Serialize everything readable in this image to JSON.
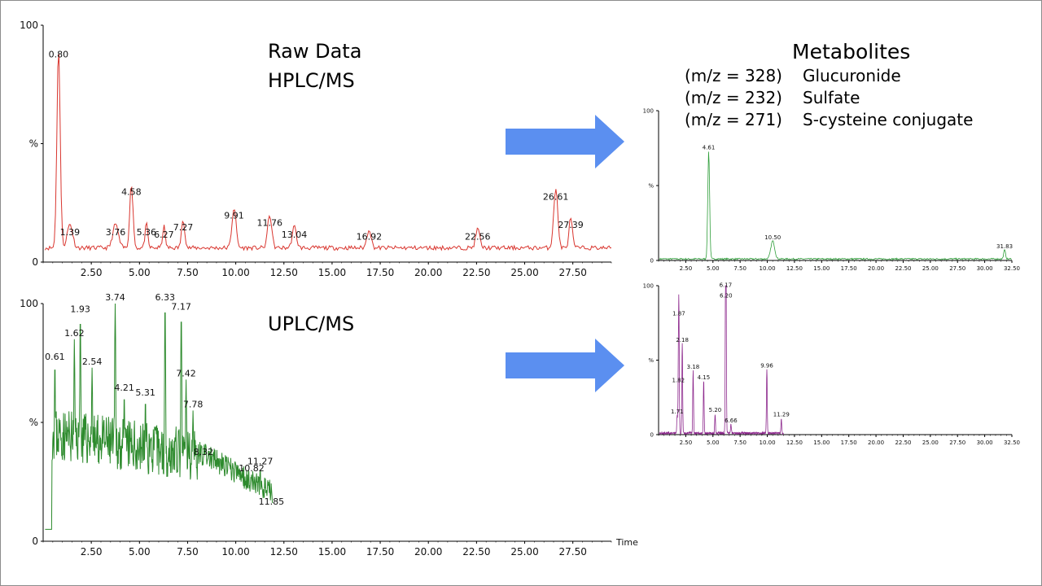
{
  "labels": {
    "raw_title": "Raw Data",
    "raw_subtitle": "HPLC/MS",
    "uplc_title": "UPLC/MS",
    "metabolites_title": "Metabolites",
    "metabolites": [
      {
        "mz": "(m/z = 328)",
        "name": "Glucuronide"
      },
      {
        "mz": "(m/z = 232)",
        "name": "Sulfate"
      },
      {
        "mz": "(m/z = 271)",
        "name": "S-cysteine conjugate"
      }
    ]
  },
  "colors": {
    "hplc": "#d9362f",
    "uplc": "#2e8b2e",
    "metab_top": "#2f9e3a",
    "metab_bottom": "#8e2a8e",
    "arrow": "#5b8ff0"
  },
  "chart_data": [
    {
      "id": "hplc",
      "type": "line",
      "title": "Raw Data HPLC/MS",
      "xlim": [
        0,
        29.5
      ],
      "ylim": [
        0,
        100
      ],
      "y_ticks": [
        "0",
        "%",
        "100"
      ],
      "x_ticks": [
        "2.50",
        "5.00",
        "7.50",
        "10.00",
        "12.50",
        "15.00",
        "17.50",
        "20.00",
        "22.50",
        "25.00",
        "27.50"
      ],
      "x_label": "",
      "baseline": 6,
      "peaks": [
        {
          "x": 0.8,
          "y": 85,
          "w": 0.12,
          "label": "0.80"
        },
        {
          "x": 1.39,
          "y": 10,
          "w": 0.2,
          "label": "1.39"
        },
        {
          "x": 3.76,
          "y": 10,
          "w": 0.2,
          "label": "3.76"
        },
        {
          "x": 4.58,
          "y": 27,
          "w": 0.12,
          "label": "4.58"
        },
        {
          "x": 5.36,
          "y": 10,
          "w": 0.1,
          "label": "5.36"
        },
        {
          "x": 6.27,
          "y": 9,
          "w": 0.1,
          "label": "6.27"
        },
        {
          "x": 7.27,
          "y": 12,
          "w": 0.12,
          "label": "7.27"
        },
        {
          "x": 9.91,
          "y": 17,
          "w": 0.15,
          "label": "9.91"
        },
        {
          "x": 11.76,
          "y": 14,
          "w": 0.15,
          "label": "11.76"
        },
        {
          "x": 13.04,
          "y": 9,
          "w": 0.15,
          "label": "13.04"
        },
        {
          "x": 16.92,
          "y": 8,
          "w": 0.15,
          "label": "16.92"
        },
        {
          "x": 22.56,
          "y": 8,
          "w": 0.15,
          "label": "22.56"
        },
        {
          "x": 26.61,
          "y": 25,
          "w": 0.15,
          "label": "26.61"
        },
        {
          "x": 27.39,
          "y": 13,
          "w": 0.12,
          "label": "27.39"
        }
      ]
    },
    {
      "id": "uplc",
      "type": "line",
      "title": "UPLC/MS",
      "xlim": [
        0,
        29.5
      ],
      "ylim": [
        0,
        100
      ],
      "y_ticks": [
        "0",
        "%",
        "100"
      ],
      "x_ticks": [
        "2.50",
        "5.00",
        "7.50",
        "10.00",
        "12.50",
        "15.00",
        "17.50",
        "20.00",
        "22.50",
        "25.00",
        "27.50"
      ],
      "x_label": "Time",
      "x_end": 11.9,
      "peaks": [
        {
          "x": 0.61,
          "y": 75,
          "w": 0.05,
          "label": "0.61"
        },
        {
          "x": 1.62,
          "y": 85,
          "w": 0.05,
          "label": "1.62"
        },
        {
          "x": 1.93,
          "y": 95,
          "w": 0.05,
          "label": "1.93"
        },
        {
          "x": 2.54,
          "y": 73,
          "w": 0.05,
          "label": "2.54"
        },
        {
          "x": 3.74,
          "y": 100,
          "w": 0.05,
          "label": "3.74"
        },
        {
          "x": 4.21,
          "y": 62,
          "w": 0.05,
          "label": "4.21"
        },
        {
          "x": 5.31,
          "y": 60,
          "w": 0.05,
          "label": "5.31"
        },
        {
          "x": 6.33,
          "y": 100,
          "w": 0.05,
          "label": "6.33"
        },
        {
          "x": 7.17,
          "y": 96,
          "w": 0.05,
          "label": "7.17"
        },
        {
          "x": 7.42,
          "y": 68,
          "w": 0.05,
          "label": "7.42"
        },
        {
          "x": 7.78,
          "y": 55,
          "w": 0.05,
          "label": "7.78"
        },
        {
          "x": 8.32,
          "y": 35,
          "w": 0.05,
          "label": "8.32"
        },
        {
          "x": 10.82,
          "y": 28,
          "w": 0.05,
          "label": "10.82"
        },
        {
          "x": 11.27,
          "y": 31,
          "w": 0.05,
          "label": "11.27"
        },
        {
          "x": 11.85,
          "y": 14,
          "w": 0.05,
          "label": "11.85"
        }
      ]
    },
    {
      "id": "metab-top",
      "type": "line",
      "title": "",
      "xlim": [
        0,
        32.5
      ],
      "ylim": [
        0,
        100
      ],
      "y_ticks": [
        "0",
        "%",
        "100"
      ],
      "x_ticks": [
        "2.50",
        "5.00",
        "7.50",
        "10.00",
        "12.50",
        "15.00",
        "17.50",
        "20.00",
        "22.50",
        "25.00",
        "27.50",
        "30.00",
        "32.50"
      ],
      "x_label": "",
      "baseline": 1,
      "peaks": [
        {
          "x": 4.61,
          "y": 72,
          "w": 0.12,
          "label": "4.61"
        },
        {
          "x": 10.5,
          "y": 12,
          "w": 0.25,
          "label": "10.50"
        },
        {
          "x": 31.83,
          "y": 6,
          "w": 0.12,
          "label": "31.83"
        }
      ]
    },
    {
      "id": "metab-bottom",
      "type": "line",
      "title": "",
      "xlim": [
        0,
        32.5
      ],
      "ylim": [
        0,
        100
      ],
      "y_ticks": [
        "0",
        "%",
        "100"
      ],
      "x_ticks": [
        "2.50",
        "5.00",
        "7.50",
        "10.00",
        "12.50",
        "15.00",
        "17.50",
        "20.00",
        "22.50",
        "25.00",
        "27.50",
        "30.00",
        "32.50"
      ],
      "x_label": "",
      "baseline": 1,
      "x_end": 11.5,
      "peaks": [
        {
          "x": 1.71,
          "y": 12,
          "w": 0.05,
          "label": "1.71"
        },
        {
          "x": 1.82,
          "y": 33,
          "w": 0.05,
          "label": "1.82"
        },
        {
          "x": 1.87,
          "y": 78,
          "w": 0.05,
          "label": "1.87"
        },
        {
          "x": 2.18,
          "y": 60,
          "w": 0.05,
          "label": "2.18"
        },
        {
          "x": 3.18,
          "y": 42,
          "w": 0.05,
          "label": "3.18"
        },
        {
          "x": 4.15,
          "y": 35,
          "w": 0.05,
          "label": "4.15"
        },
        {
          "x": 5.2,
          "y": 13,
          "w": 0.05,
          "label": "5.20"
        },
        {
          "x": 6.17,
          "y": 97,
          "w": 0.05,
          "label": "6.17"
        },
        {
          "x": 6.2,
          "y": 90,
          "w": 0.05,
          "label": "6.20"
        },
        {
          "x": 6.66,
          "y": 6,
          "w": 0.05,
          "label": "6.66"
        },
        {
          "x": 9.96,
          "y": 43,
          "w": 0.05,
          "label": "9.96"
        },
        {
          "x": 11.29,
          "y": 10,
          "w": 0.05,
          "label": "11.29"
        }
      ]
    }
  ]
}
